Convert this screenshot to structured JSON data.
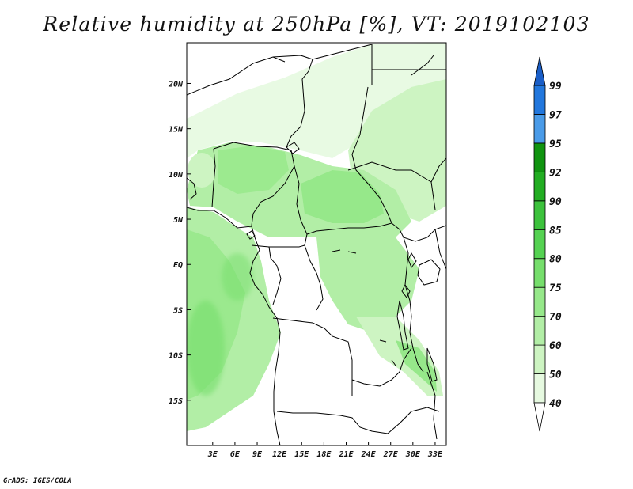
{
  "title": "Relative humidity at 250hPa [%], VT: 2019102103",
  "credit": "GrADS: IGES/COLA",
  "map": {
    "lon_range": [
      -0.5,
      34.5
    ],
    "lat_range": [
      -20,
      24.5
    ],
    "lon_ticks": [
      3,
      6,
      9,
      12,
      15,
      18,
      21,
      24,
      27,
      30,
      33
    ],
    "lon_tick_labels": [
      "3E",
      "6E",
      "9E",
      "12E",
      "15E",
      "18E",
      "21E",
      "24E",
      "27E",
      "30E",
      "33E"
    ],
    "lat_ticks": [
      20,
      15,
      10,
      5,
      0,
      -5,
      -10,
      -15
    ],
    "lat_tick_labels": [
      "20N",
      "15N",
      "10N",
      "5N",
      "EQ",
      "5S",
      "10S",
      "15S"
    ],
    "land_color": "#ffffff",
    "border_color": "#000000"
  },
  "colorbar": {
    "levels": [
      "40",
      "50",
      "60",
      "70",
      "75",
      "80",
      "85",
      "90",
      "92",
      "95",
      "97",
      "99"
    ],
    "colors": [
      "#ffffff",
      "#e6f9e0",
      "#cdf4c2",
      "#b2eea6",
      "#96e88a",
      "#76de6c",
      "#55d252",
      "#3cc23c",
      "#22ad22",
      "#109410",
      "#4a9be8",
      "#2277dd",
      "#1a5ec7"
    ]
  }
}
